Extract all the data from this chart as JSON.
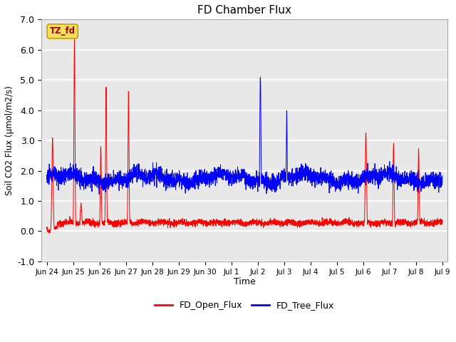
{
  "title": "FD Chamber Flux",
  "xlabel": "Time",
  "ylabel": "Soil CO2 Flux (umol/m2/s)",
  "ylim": [
    -1.0,
    7.0
  ],
  "yticks": [
    -1.0,
    0.0,
    1.0,
    2.0,
    3.0,
    4.0,
    5.0,
    6.0,
    7.0
  ],
  "ytick_labels": [
    "-1.0",
    "0.0",
    "1.0",
    "2.0",
    "3.0",
    "4.0",
    "5.0",
    "6.0",
    "7.0"
  ],
  "background_color": "#e8e8e8",
  "fig_background": "#ffffff",
  "grid_color": "#ffffff",
  "open_flux_color": "#ff0000",
  "tree_flux_color": "#0000ff",
  "annotation_text": "TZ_fd",
  "annotation_bg": "#f0e060",
  "annotation_border": "#c8a000",
  "annotation_text_color": "#aa0000",
  "legend_labels": [
    "FD_Open_Flux",
    "FD_Tree_Flux"
  ],
  "n_points": 3600,
  "seed": 42,
  "tick_labels": [
    "Jun 24",
    "Jun 25",
    "Jun 26",
    "Jun 27",
    "Jun 28",
    "Jun 29",
    "Jun 30",
    "Jul 1",
    "Jul 2",
    "Jul 3",
    "Jul 4",
    "Jul 5",
    "Jul 6",
    "Jul 7",
    "Jul 8",
    "Jul 9"
  ],
  "tick_positions": [
    0,
    1,
    2,
    3,
    4,
    5,
    6,
    7,
    8,
    9,
    10,
    11,
    12,
    13,
    14,
    15
  ]
}
